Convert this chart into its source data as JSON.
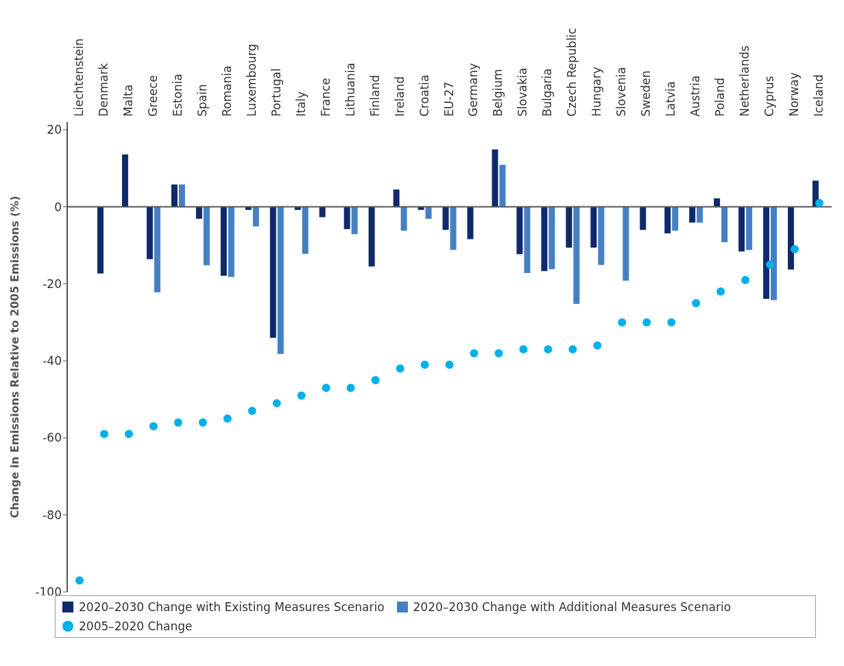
{
  "chart_data": {
    "type": "bar",
    "ylabel": "Change in Emissions Relative to 2005 Emissions (%)",
    "categories": [
      "Liechtenstein",
      "Denmark",
      "Malta",
      "Greece",
      "Estonia",
      "Spain",
      "Romania",
      "Luxembourg",
      "Portugal",
      "Italy",
      "France",
      "Lithuania",
      "Finland",
      "Ireland",
      "Croatia",
      "EU-27",
      "Germany",
      "Belgium",
      "Slovakia",
      "Bulgaria",
      "Czech Republic",
      "Hungary",
      "Slovenia",
      "Sweden",
      "Latvia",
      "Austria",
      "Poland",
      "Netherlands",
      "Cyprus",
      "Norway",
      "Iceland"
    ],
    "series": [
      {
        "name": "2020–2030 Change with Existing Measures Scenario",
        "color": "#0f2a6b",
        "values": [
          null,
          -17.3,
          13.6,
          -13.6,
          5.8,
          -3.1,
          -17.9,
          -0.8,
          -34,
          -0.8,
          -2.7,
          -5.8,
          -15.5,
          4.5,
          -0.8,
          -6,
          -8.4,
          14.9,
          -12.3,
          -16.7,
          -10.6,
          -10.6,
          null,
          -6,
          -6.9,
          -4.1,
          2.2,
          -11.6,
          -23.9,
          -16.3,
          6.8
        ]
      },
      {
        "name": "2020–2030 Change with Additional Measures Scenario",
        "color": "#4580c2",
        "values": [
          null,
          null,
          null,
          -22.2,
          5.8,
          -15.2,
          -18.2,
          -5.1,
          -38.2,
          -12.2,
          null,
          -7.1,
          null,
          -6.2,
          -3.1,
          -11.2,
          null,
          10.9,
          -17.2,
          -16.2,
          -25.2,
          -15.1,
          -19.2,
          null,
          -6.2,
          -4.1,
          -9.2,
          -11.2,
          -24.2,
          null,
          null
        ]
      },
      {
        "name": "2005–2020 Change",
        "type": "scatter",
        "color": "#00b0e8",
        "values": [
          -97,
          -59,
          -59,
          -57,
          -56,
          -56,
          -55,
          -53,
          -51,
          -49,
          -47,
          -47,
          -45,
          -42,
          -41,
          -41,
          -38,
          -38,
          -37,
          -37,
          -37,
          -36,
          -30,
          -30,
          -30,
          -25,
          -22,
          -19,
          -15,
          -11,
          1
        ]
      }
    ],
    "ylim": [
      -100,
      22
    ],
    "yticks": [
      -100,
      -80,
      -60,
      -40,
      -20,
      0,
      20
    ],
    "legend": "bottom",
    "marker": "circle"
  }
}
